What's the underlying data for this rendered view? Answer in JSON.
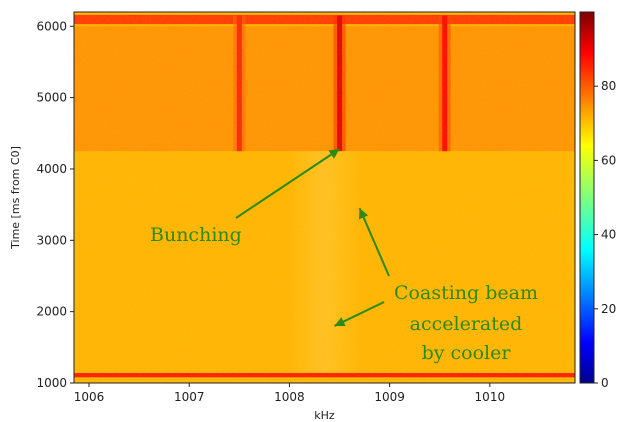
{
  "chart_data": {
    "type": "heatmap",
    "title": "",
    "xlabel": "kHz",
    "ylabel": "Time [ms from C0]",
    "xlim": [
      1005.85,
      1010.85
    ],
    "ylim": [
      1000,
      6200
    ],
    "x_ticks": [
      "1006",
      "1007",
      "1008",
      "1009",
      "1010"
    ],
    "x_tick_values": [
      1006,
      1007,
      1008,
      1009,
      1010
    ],
    "y_ticks": [
      "1000",
      "2000",
      "3000",
      "4000",
      "5000",
      "6000"
    ],
    "y_tick_values": [
      1000,
      2000,
      3000,
      4000,
      5000,
      6000
    ],
    "colorbar": {
      "colormap": "jet",
      "range": [
        0,
        100
      ],
      "ticks": [
        "0",
        "20",
        "40",
        "60",
        "80"
      ],
      "tick_values": [
        0,
        20,
        40,
        60,
        80
      ]
    },
    "background_level": 70,
    "features": [
      {
        "kind": "horizontal_band",
        "y_from": 1080,
        "y_to": 1140,
        "level": 85
      },
      {
        "kind": "horizontal_band",
        "y_from": 6030,
        "y_to": 6160,
        "level": 82
      },
      {
        "kind": "vertical_streak",
        "x": 1007.5,
        "y_from": 4250,
        "y_to": 6150,
        "level": 84
      },
      {
        "kind": "vertical_streak",
        "x": 1008.5,
        "y_from": 4250,
        "y_to": 6150,
        "level": 90
      },
      {
        "kind": "vertical_streak",
        "x": 1009.55,
        "y_from": 4250,
        "y_to": 6150,
        "level": 87
      },
      {
        "kind": "diffuse_region",
        "x_from": 1008.0,
        "x_to": 1008.7,
        "y_from": 1150,
        "y_to": 4250,
        "level": 74
      },
      {
        "kind": "upper_block",
        "x_from": 1005.85,
        "x_to": 1010.85,
        "y_from": 4250,
        "y_to": 6000,
        "level": 74
      }
    ],
    "annotations": [
      {
        "text": "Bunching",
        "arrow_to": [
          1008.5,
          4280
        ]
      },
      {
        "text": "Coasting beam",
        "arrow_to": [
          1008.7,
          3450
        ]
      },
      {
        "text": "accelerated",
        "arrow_to": [
          1008.45,
          1800
        ]
      },
      {
        "text": "by cooler"
      }
    ]
  }
}
